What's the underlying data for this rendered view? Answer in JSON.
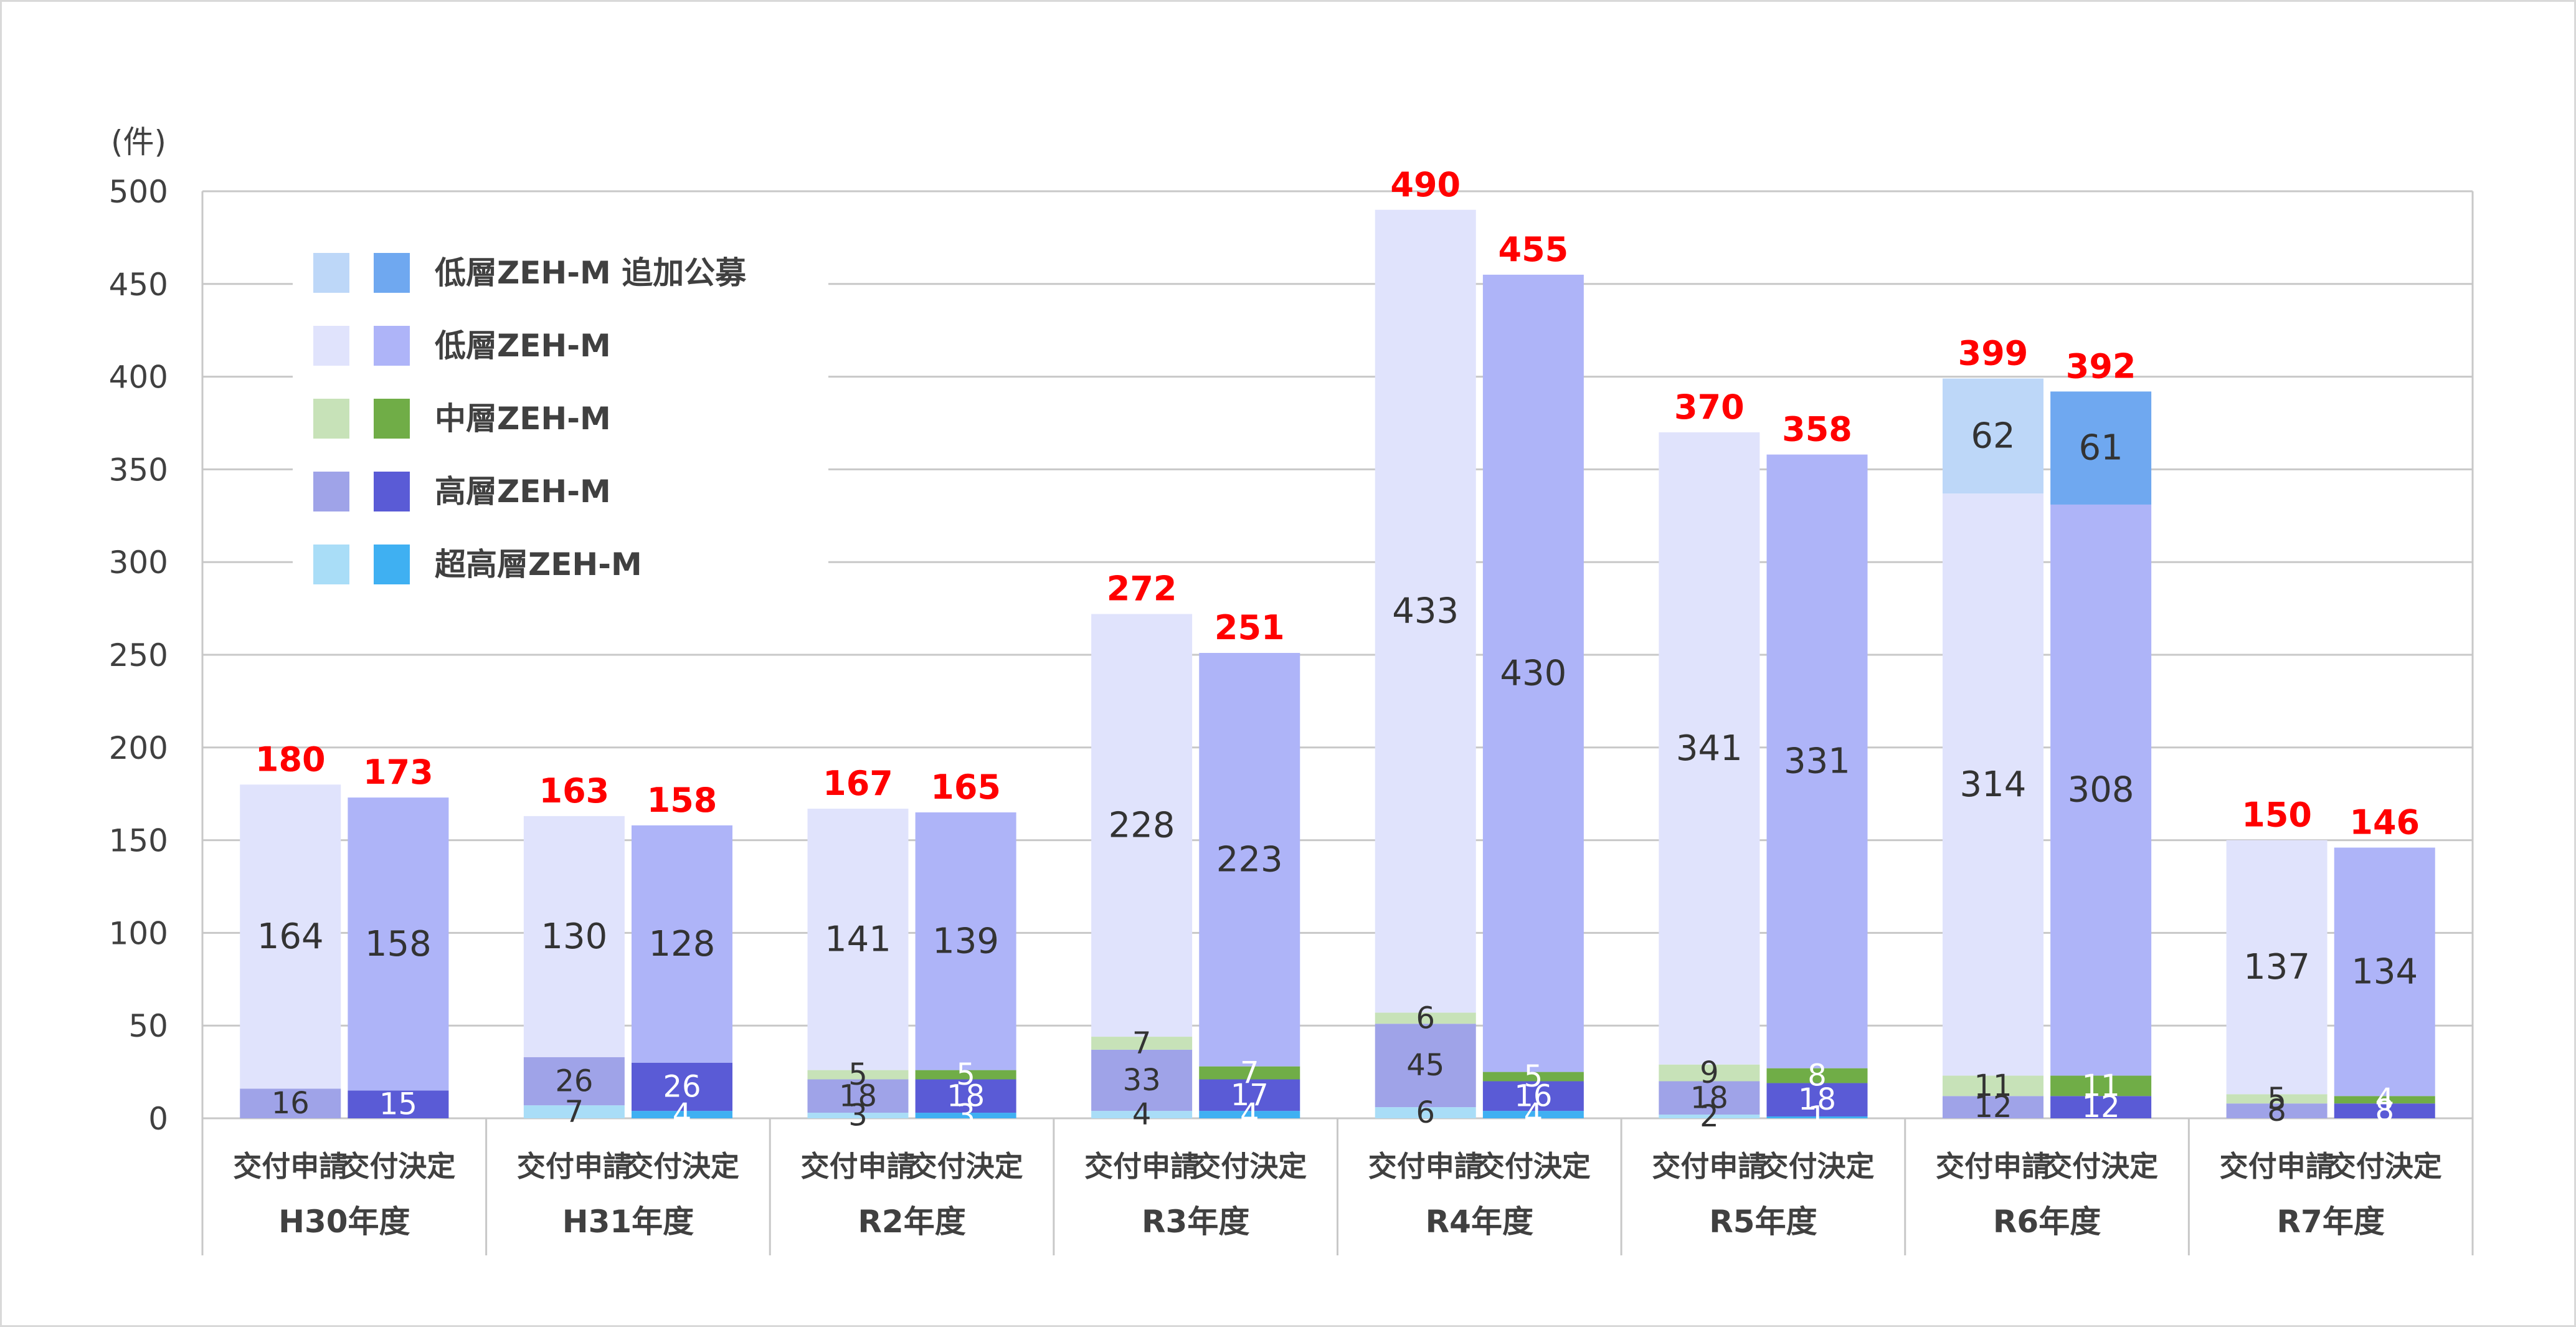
{
  "chart_data": {
    "type": "bar",
    "stacked": true,
    "unit_label": "(件)",
    "ylim": [
      0,
      500
    ],
    "yticks": [
      0,
      50,
      100,
      150,
      200,
      250,
      300,
      350,
      400,
      450,
      500
    ],
    "grid": true,
    "legend_position": "top-left",
    "groups": [
      "H30年度",
      "H31年度",
      "R2年度",
      "R3年度",
      "R4年度",
      "R5年度",
      "R6年度",
      "R7年度"
    ],
    "bar_types": [
      "交付申請",
      "交付決定"
    ],
    "legend": [
      {
        "name": "低層ZEH-M 追加公募",
        "color_application": "#bdd7f8",
        "color_decision": "#6fa8f0"
      },
      {
        "name": "低層ZEH-M",
        "color_application": "#e0e3fc",
        "color_decision": "#aeb4f8"
      },
      {
        "name": "中層ZEH-M",
        "color_application": "#c7e2b8",
        "color_decision": "#70ad47"
      },
      {
        "name": "高層ZEH-M",
        "color_application": "#9fa3e8",
        "color_decision": "#5a5bd6"
      },
      {
        "name": "超高層ZEH-M",
        "color_application": "#a9ddf7",
        "color_decision": "#3fb0f2"
      }
    ],
    "bars": [
      {
        "group": "H30年度",
        "type": "交付申請",
        "total": "180",
        "segments": [
          {
            "series": "高層ZEH-M",
            "value": 16,
            "label": "16"
          },
          {
            "series": "低層ZEH-M",
            "value": 164,
            "label": "164"
          }
        ]
      },
      {
        "group": "H30年度",
        "type": "交付決定",
        "total": "173",
        "segments": [
          {
            "series": "高層ZEH-M",
            "value": 15,
            "label": "15"
          },
          {
            "series": "低層ZEH-M",
            "value": 158,
            "label": "158"
          }
        ]
      },
      {
        "group": "H31年度",
        "type": "交付申請",
        "total": "163",
        "segments": [
          {
            "series": "超高層ZEH-M",
            "value": 7,
            "label": "7"
          },
          {
            "series": "高層ZEH-M",
            "value": 26,
            "label": "26"
          },
          {
            "series": "低層ZEH-M",
            "value": 130,
            "label": "130"
          }
        ]
      },
      {
        "group": "H31年度",
        "type": "交付決定",
        "total": "158",
        "segments": [
          {
            "series": "超高層ZEH-M",
            "value": 4,
            "label": "4"
          },
          {
            "series": "高層ZEH-M",
            "value": 26,
            "label": "26"
          },
          {
            "series": "低層ZEH-M",
            "value": 128,
            "label": "128"
          }
        ]
      },
      {
        "group": "R2年度",
        "type": "交付申請",
        "total": "167",
        "segments": [
          {
            "series": "超高層ZEH-M",
            "value": 3,
            "label": "3"
          },
          {
            "series": "高層ZEH-M",
            "value": 18,
            "label": "18"
          },
          {
            "series": "中層ZEH-M",
            "value": 5,
            "label": "5"
          },
          {
            "series": "低層ZEH-M",
            "value": 141,
            "label": "141"
          }
        ]
      },
      {
        "group": "R2年度",
        "type": "交付決定",
        "total": "165",
        "segments": [
          {
            "series": "超高層ZEH-M",
            "value": 3,
            "label": "3"
          },
          {
            "series": "高層ZEH-M",
            "value": 18,
            "label": "18"
          },
          {
            "series": "中層ZEH-M",
            "value": 5,
            "label": "5"
          },
          {
            "series": "低層ZEH-M",
            "value": 139,
            "label": "139"
          }
        ]
      },
      {
        "group": "R3年度",
        "type": "交付申請",
        "total": "272",
        "segments": [
          {
            "series": "超高層ZEH-M",
            "value": 4,
            "label": "4"
          },
          {
            "series": "高層ZEH-M",
            "value": 33,
            "label": "33"
          },
          {
            "series": "中層ZEH-M",
            "value": 7,
            "label": "7"
          },
          {
            "series": "低層ZEH-M",
            "value": 228,
            "label": "228"
          }
        ]
      },
      {
        "group": "R3年度",
        "type": "交付決定",
        "total": "251",
        "segments": [
          {
            "series": "超高層ZEH-M",
            "value": 4,
            "label": "4"
          },
          {
            "series": "高層ZEH-M",
            "value": 17,
            "label": "17"
          },
          {
            "series": "中層ZEH-M",
            "value": 7,
            "label": "7"
          },
          {
            "series": "低層ZEH-M",
            "value": 223,
            "label": "223"
          }
        ]
      },
      {
        "group": "R4年度",
        "type": "交付申請",
        "total": "490",
        "segments": [
          {
            "series": "超高層ZEH-M",
            "value": 6,
            "label": "6"
          },
          {
            "series": "高層ZEH-M",
            "value": 45,
            "label": "45"
          },
          {
            "series": "中層ZEH-M",
            "value": 6,
            "label": "6"
          },
          {
            "series": "低層ZEH-M",
            "value": 433,
            "label": "433"
          }
        ]
      },
      {
        "group": "R4年度",
        "type": "交付決定",
        "total": "455",
        "segments": [
          {
            "series": "超高層ZEH-M",
            "value": 4,
            "label": "4"
          },
          {
            "series": "高層ZEH-M",
            "value": 16,
            "label": "16"
          },
          {
            "series": "中層ZEH-M",
            "value": 5,
            "label": "5"
          },
          {
            "series": "低層ZEH-M",
            "value": 430,
            "label": "430"
          }
        ]
      },
      {
        "group": "R5年度",
        "type": "交付申請",
        "total": "370",
        "segments": [
          {
            "series": "超高層ZEH-M",
            "value": 2,
            "label": "2"
          },
          {
            "series": "高層ZEH-M",
            "value": 18,
            "label": "18"
          },
          {
            "series": "中層ZEH-M",
            "value": 9,
            "label": "9"
          },
          {
            "series": "低層ZEH-M",
            "value": 341,
            "label": "341"
          }
        ]
      },
      {
        "group": "R5年度",
        "type": "交付決定",
        "total": "358",
        "segments": [
          {
            "series": "超高層ZEH-M",
            "value": 1,
            "label": "1"
          },
          {
            "series": "高層ZEH-M",
            "value": 18,
            "label": "18"
          },
          {
            "series": "中層ZEH-M",
            "value": 8,
            "label": "8"
          },
          {
            "series": "低層ZEH-M",
            "value": 331,
            "label": "331"
          }
        ]
      },
      {
        "group": "R6年度",
        "type": "交付申請",
        "total": "399",
        "segments": [
          {
            "series": "高層ZEH-M",
            "value": 12,
            "label": "12"
          },
          {
            "series": "中層ZEH-M",
            "value": 11,
            "label": "11"
          },
          {
            "series": "低層ZEH-M",
            "value": 314,
            "label": "314"
          },
          {
            "series": "低層ZEH-M 追加公募",
            "value": 62,
            "label": "62"
          }
        ]
      },
      {
        "group": "R6年度",
        "type": "交付決定",
        "total": "392",
        "segments": [
          {
            "series": "高層ZEH-M",
            "value": 12,
            "label": "12"
          },
          {
            "series": "中層ZEH-M",
            "value": 11,
            "label": "11"
          },
          {
            "series": "低層ZEH-M",
            "value": 308,
            "label": "308"
          },
          {
            "series": "低層ZEH-M 追加公募",
            "value": 61,
            "label": "61"
          }
        ]
      },
      {
        "group": "R7年度",
        "type": "交付申請",
        "total": "150",
        "segments": [
          {
            "series": "高層ZEH-M",
            "value": 8,
            "label": "8"
          },
          {
            "series": "中層ZEH-M",
            "value": 5,
            "label": "5"
          },
          {
            "series": "低層ZEH-M",
            "value": 137,
            "label": "137"
          }
        ]
      },
      {
        "group": "R7年度",
        "type": "交付決定",
        "total": "146",
        "segments": [
          {
            "series": "高層ZEH-M",
            "value": 8,
            "label": "8"
          },
          {
            "series": "中層ZEH-M",
            "value": 4,
            "label": "4"
          },
          {
            "series": "低層ZEH-M",
            "value": 134,
            "label": "134"
          }
        ]
      }
    ]
  }
}
